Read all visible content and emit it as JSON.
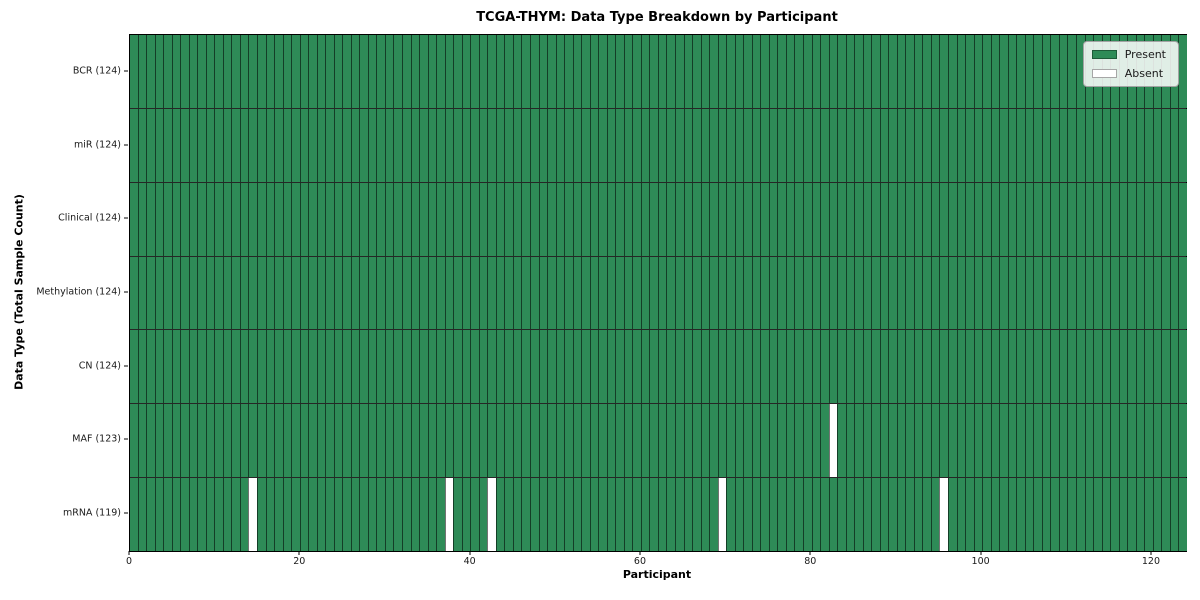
{
  "figure": {
    "title": "TCGA-THYM: Data Type Breakdown by Participant",
    "xlabel": "Participant",
    "ylabel": "Data Type (Total Sample Count)"
  },
  "chart_data": {
    "type": "heatmap",
    "title": "TCGA-THYM: Data Type Breakdown by Participant",
    "xlabel": "Participant",
    "ylabel": "Data Type (Total Sample Count)",
    "n_participants": 124,
    "x_ticks": [
      0,
      20,
      40,
      60,
      80,
      100,
      120
    ],
    "xlim": [
      0,
      124
    ],
    "grid": false,
    "legend_position": "upper right",
    "rows": [
      {
        "label": "BCR (124)",
        "present_count": 124,
        "absent_participants": []
      },
      {
        "label": "miR (124)",
        "present_count": 124,
        "absent_participants": []
      },
      {
        "label": "Clinical (124)",
        "present_count": 124,
        "absent_participants": []
      },
      {
        "label": "Methylation (124)",
        "present_count": 124,
        "absent_participants": []
      },
      {
        "label": "CN (124)",
        "present_count": 124,
        "absent_participants": []
      },
      {
        "label": "MAF (123)",
        "present_count": 123,
        "absent_participants": [
          82
        ]
      },
      {
        "label": "mRNA (119)",
        "present_count": 119,
        "absent_participants": [
          14,
          37,
          42,
          69,
          95
        ]
      }
    ],
    "legend": [
      {
        "label": "Present",
        "color": "#2e8b57"
      },
      {
        "label": "Absent",
        "color": "#ffffff"
      }
    ],
    "colors": {
      "present": "#2e8b57",
      "absent": "#ffffff",
      "cell_edge": "rgba(0,0,0,0.55)",
      "row_edge": "rgba(0,0,0,0.85)",
      "spine": "#000000"
    }
  }
}
